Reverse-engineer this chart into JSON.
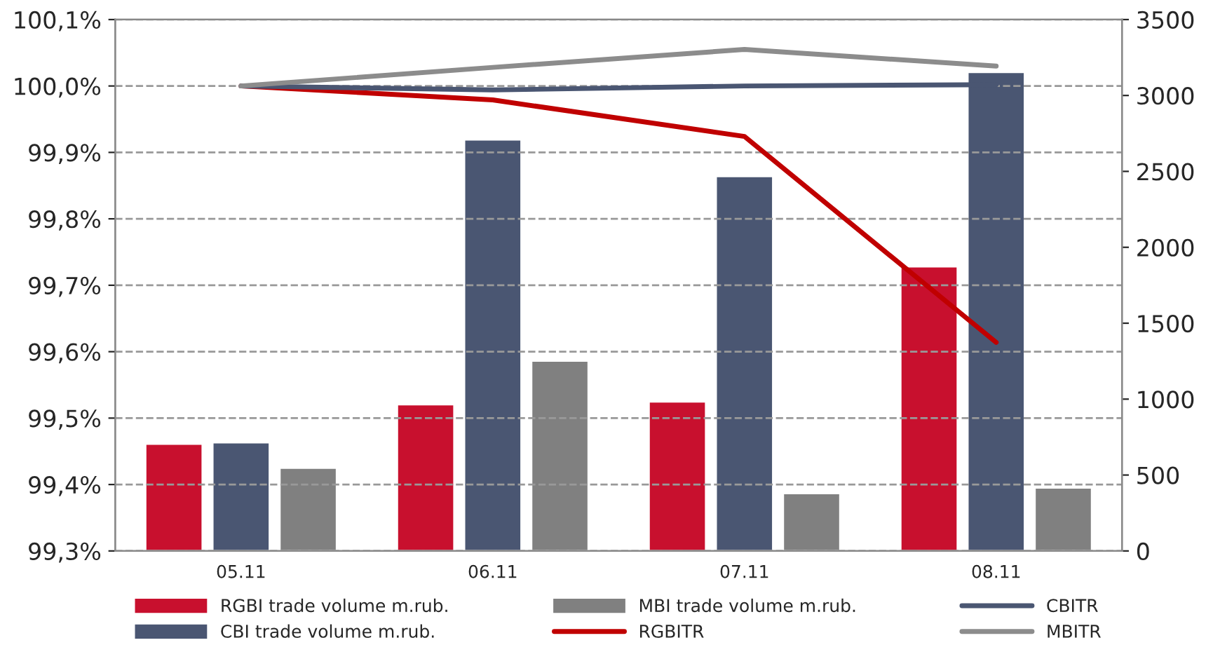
{
  "chart_data": {
    "type": "bar",
    "categories": [
      "05.11",
      "06.11",
      "07.11",
      "08.11"
    ],
    "series": [
      {
        "name": "RGBI trade volume m.rub.",
        "color": "#c8102e",
        "axis": "y2",
        "values": [
          705,
          965,
          983,
          1874
        ]
      },
      {
        "name": "CBI trade volume m.rub.",
        "color": "#4a5672",
        "axis": "y2",
        "values": [
          714,
          2709,
          2468,
          3154
        ]
      },
      {
        "name": "MBI trade volume m.rub.",
        "color": "#808080",
        "axis": "y2",
        "values": [
          547,
          1252,
          380,
          417
        ]
      },
      {
        "name": "RGBITR",
        "type": "line",
        "color": "#c00000",
        "values": [
          100.0,
          99.979,
          99.924,
          99.614
        ]
      },
      {
        "name": "CBITR",
        "type": "line",
        "color": "#4a5672",
        "values": [
          100.0,
          99.994,
          100.0,
          100.002
        ]
      },
      {
        "name": "MBITR",
        "type": "line",
        "color": "#8c8c8c",
        "values": [
          100.0,
          100.028,
          100.055,
          100.03
        ]
      }
    ],
    "ylim": [
      99.3,
      100.1
    ],
    "yticks": [
      {
        "value": 99.3,
        "label": "99,3%"
      },
      {
        "value": 99.4,
        "label": "99,4%"
      },
      {
        "value": 99.5,
        "label": "99,5%"
      },
      {
        "value": 99.6,
        "label": "99,6%"
      },
      {
        "value": 99.7,
        "label": "99,7%"
      },
      {
        "value": 99.8,
        "label": "99,8%"
      },
      {
        "value": 99.9,
        "label": "99,9%"
      },
      {
        "value": 100.0,
        "label": "100,0%"
      },
      {
        "value": 100.1,
        "label": "100,1%"
      }
    ],
    "y2lim": [
      0,
      3500
    ],
    "y2ticks": [
      0,
      500,
      1000,
      1500,
      2000,
      2500,
      3000,
      3500
    ],
    "grid": "y",
    "legend": "bottom",
    "line_style": "solid",
    "marker": "none"
  }
}
